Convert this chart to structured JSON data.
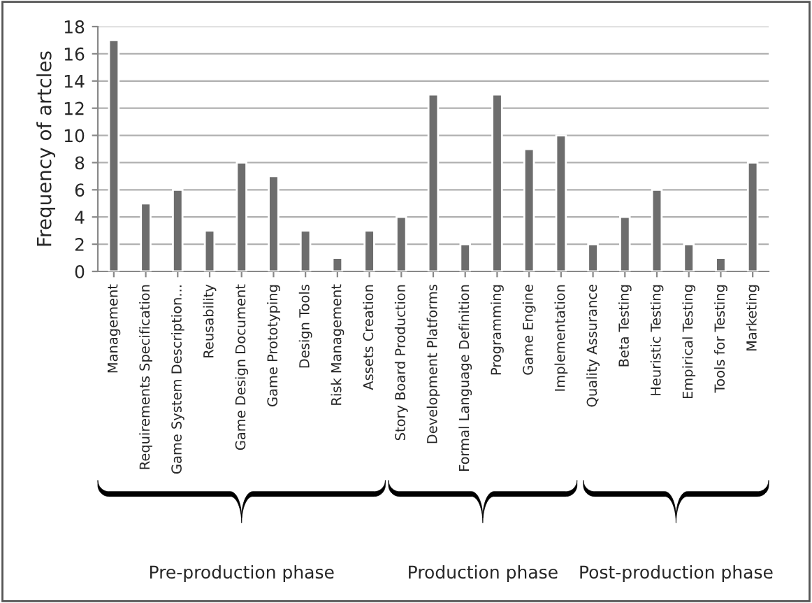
{
  "chart_data": {
    "type": "bar",
    "ylabel": "Frequency of artcles",
    "categories": [
      "Management",
      "Requirements Specification",
      "Game System Description...",
      "Reusability",
      "Game Design Document",
      "Game Prototyping",
      "Design Tools",
      "Risk Management",
      "Assets Creation",
      "Story Board Production",
      "Development Platforms",
      "Formal Language Definition",
      "Programming",
      "Game Engine",
      "Implementation",
      "Quality Assurance",
      "Beta Testing",
      "Heuristic Testing",
      "Empirical Testing",
      "Tools for Testing",
      "Marketing"
    ],
    "values": [
      17,
      5,
      6,
      3,
      8,
      7,
      3,
      1,
      3,
      4,
      13,
      2,
      13,
      9,
      10,
      2,
      4,
      6,
      2,
      1,
      8
    ],
    "color": "#6d6d6d",
    "ylim": [
      0,
      18
    ],
    "yticks": [
      0,
      2,
      4,
      6,
      8,
      10,
      12,
      14,
      16,
      18
    ],
    "grid": "y",
    "annotations": [
      "Pre-production phase",
      "Production phase",
      "Post-production phase"
    ]
  }
}
